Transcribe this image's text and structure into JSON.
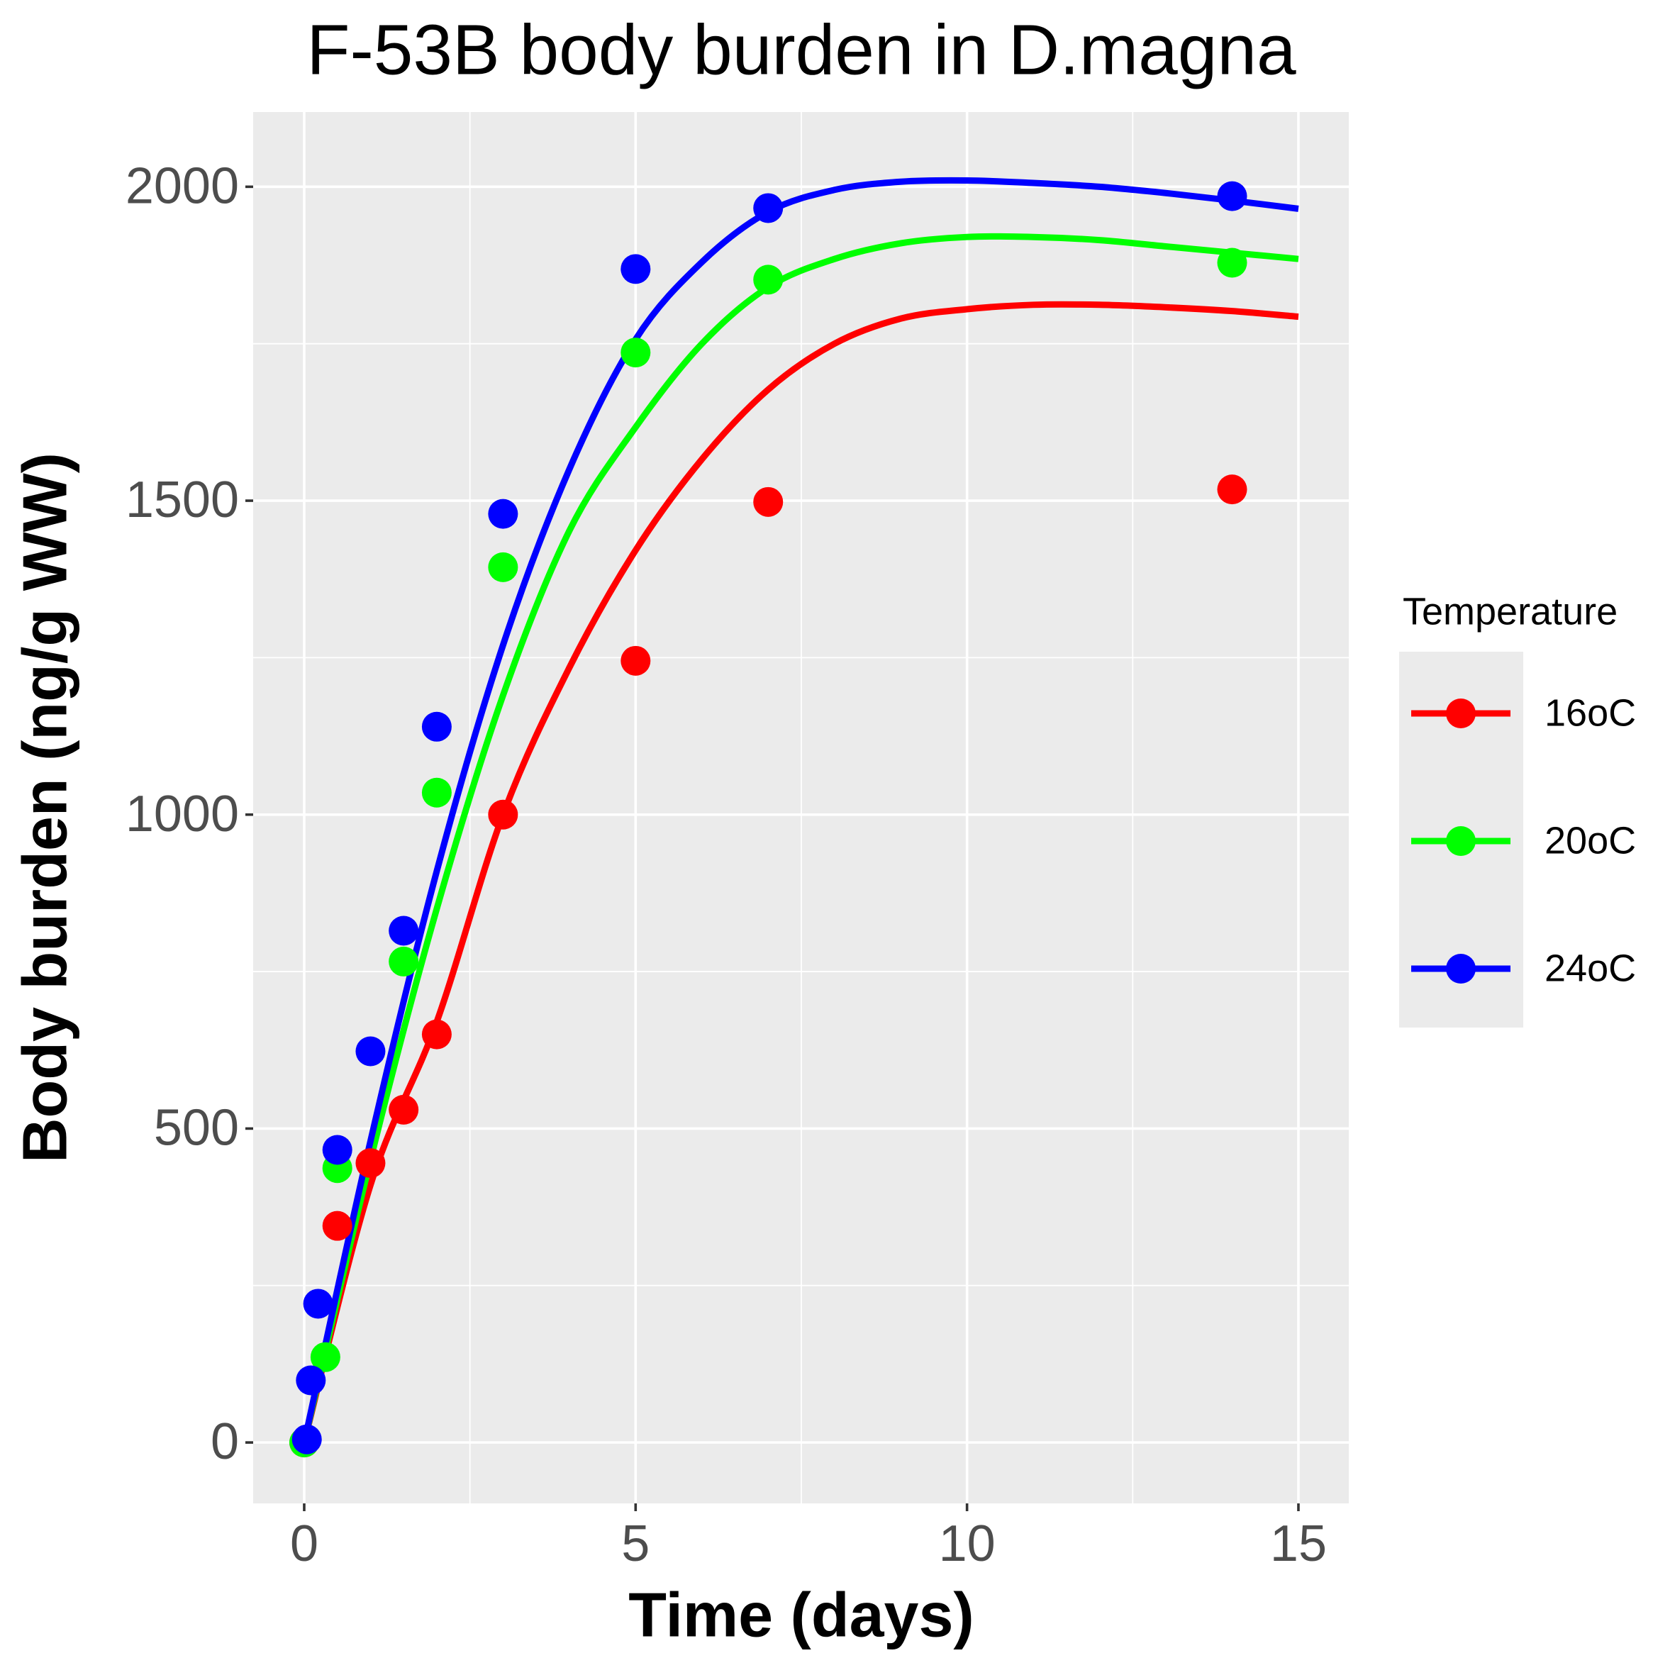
{
  "chart_data": {
    "type": "scatter",
    "title": "F-53B body burden in D.magna",
    "x_label": "Time (days)",
    "y_label": "Body burden (ng/g WW)",
    "legend_title": "Temperature",
    "legend": "right",
    "grid": true,
    "xlim": [
      -0.77,
      15.76
    ],
    "ylim": [
      -97,
      2119
    ],
    "xticks": [
      0,
      5,
      10,
      15
    ],
    "yticks": [
      0,
      500,
      1000,
      1500,
      2000
    ],
    "minor_xticks": [
      2.5,
      7.5,
      12.5
    ],
    "minor_yticks": [
      250,
      750,
      1250,
      1750
    ],
    "fit_x": [
      0,
      1,
      2,
      3,
      4,
      5,
      6,
      7,
      8,
      9,
      10,
      11,
      12,
      13,
      14,
      15
    ],
    "series": [
      {
        "name": "16oC",
        "color": "#FF0000",
        "x": [
          0,
          0.5,
          1,
          1.5,
          2,
          3,
          5,
          7,
          14
        ],
        "values": [
          0,
          345,
          445,
          530,
          650,
          1000,
          1245,
          1498,
          1518
        ],
        "fit_values": [
          0,
          410,
          670,
          1000,
          1234,
          1421,
          1566,
          1677,
          1750,
          1790,
          1805,
          1812,
          1812,
          1808,
          1802,
          1793
        ]
      },
      {
        "name": "20oC",
        "color": "#00FF00",
        "x": [
          0,
          0.32,
          0.5,
          1.5,
          2,
          3,
          5,
          7,
          14
        ],
        "values": [
          0,
          136,
          437,
          766,
          1035,
          1394,
          1736,
          1852,
          1879
        ],
        "fit_values": [
          0,
          450,
          850,
          1190,
          1452,
          1617,
          1750,
          1840,
          1885,
          1910,
          1920,
          1920,
          1915,
          1905,
          1895,
          1885
        ]
      },
      {
        "name": "24oC",
        "color": "#0000FF",
        "x": [
          0.04,
          0.1,
          0.21,
          0.5,
          1,
          1.5,
          2,
          3,
          5,
          7,
          14
        ],
        "values": [
          5,
          99,
          221,
          466,
          623,
          815,
          1140,
          1479,
          1869,
          1966,
          1985
        ],
        "fit_values": [
          0,
          480,
          910,
          1270,
          1550,
          1757,
          1880,
          1960,
          1995,
          2008,
          2010,
          2006,
          2000,
          1990,
          1978,
          1965
        ]
      }
    ]
  }
}
